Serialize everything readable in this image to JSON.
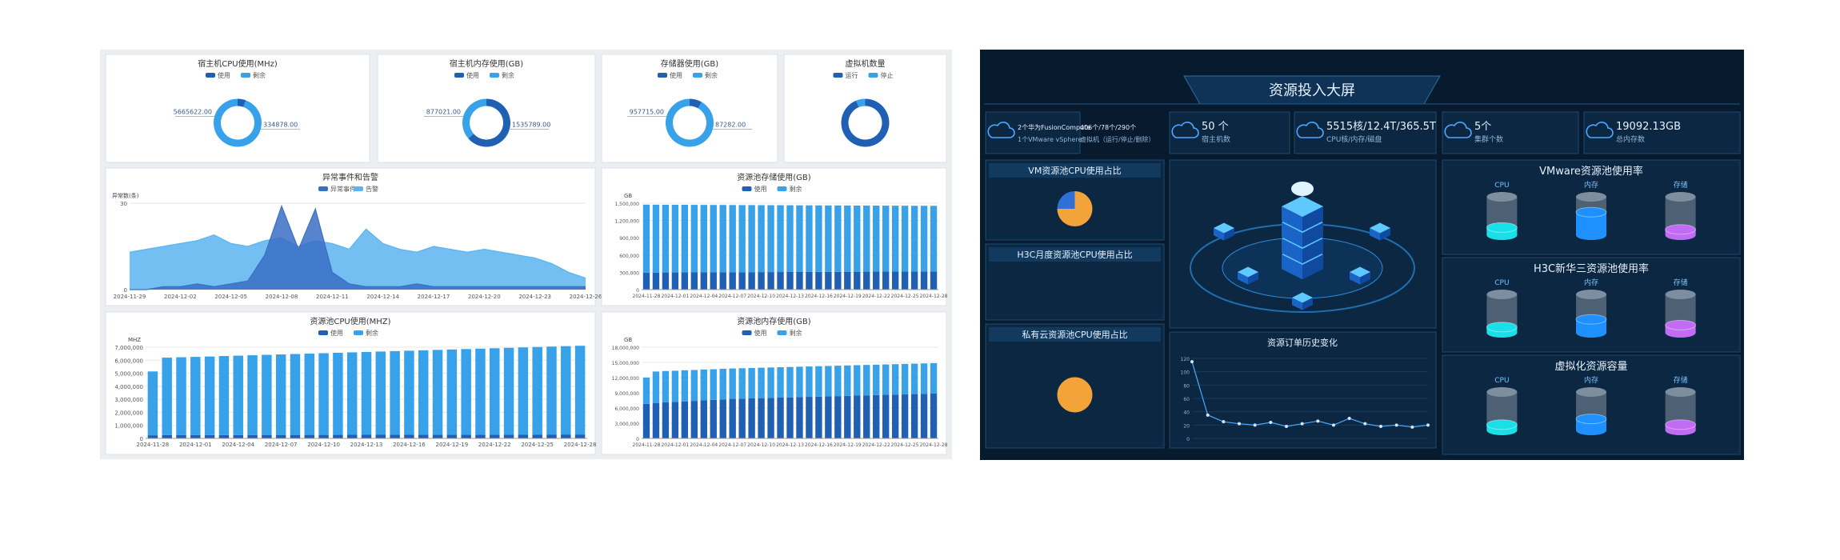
{
  "left": {
    "charts": [
      {
        "type": "donut",
        "title": "宿主机CPU使用(MHz)",
        "legend": [
          "使用",
          "剩余"
        ],
        "colors": [
          "#1f5fb4",
          "#37a2ea"
        ],
        "values": [
          334878,
          5665622
        ],
        "value_labels": [
          "334878.00",
          "5665622.00"
        ]
      },
      {
        "type": "donut",
        "title": "宿主机内存使用(GB)",
        "legend": [
          "使用",
          "剩余"
        ],
        "colors": [
          "#1f5fb4",
          "#37a2ea"
        ],
        "values": [
          1535789,
          877021
        ],
        "value_labels": [
          "1535789.00",
          "877021.00"
        ]
      },
      {
        "type": "donut",
        "title": "存储器使用(GB)",
        "legend": [
          "使用",
          "剩余"
        ],
        "colors": [
          "#1f5fb4",
          "#37a2ea"
        ],
        "values": [
          87282,
          957715
        ],
        "value_labels": [
          "87282.00",
          "957715.00"
        ]
      },
      {
        "type": "donut",
        "title": "虚拟机数量",
        "legend": [
          "运行",
          "停止"
        ],
        "colors": [
          "#1f5fb4",
          "#37a2ea"
        ],
        "values": [
          61,
          4
        ]
      },
      {
        "type": "area",
        "title": "异常事件和告警",
        "y_label": "异常数(条)",
        "ylim": [
          0,
          30
        ],
        "yticks": [
          0,
          30
        ],
        "categories": [
          "2024-11-29",
          null,
          null,
          "2024-12-02",
          null,
          null,
          "2024-12-05",
          null,
          null,
          "2024-12-08",
          null,
          null,
          "2024-12-11",
          null,
          null,
          "2024-12-14",
          null,
          null,
          "2024-12-17",
          null,
          null,
          "2024-12-20",
          null,
          null,
          "2024-12-23",
          null,
          null,
          "2024-12-26"
        ],
        "series": [
          {
            "name": "异常事件",
            "color": "#3a6fc4",
            "values": [
              0,
              0,
              1,
              1,
              2,
              1,
              2,
              3,
              12,
              29,
              14,
              28,
              6,
              2,
              1,
              1,
              1,
              2,
              1,
              1,
              1,
              1,
              1,
              1,
              1,
              1,
              1,
              1
            ]
          },
          {
            "name": "告警",
            "color": "#5ab4f0",
            "values": [
              13,
              14,
              15,
              16,
              17,
              19,
              16,
              15,
              17,
              18,
              15,
              17,
              16,
              14,
              21,
              16,
              14,
              13,
              15,
              14,
              13,
              14,
              13,
              12,
              11,
              9,
              6,
              4
            ]
          }
        ]
      },
      {
        "type": "bar",
        "title": "资源池存储使用(GB)",
        "y_label": "GB",
        "ylim": [
          0,
          1500000
        ],
        "yticks": [
          0,
          {
            "value": 300000,
            "label": "300,000"
          },
          {
            "value": 600000,
            "label": "600,000"
          },
          {
            "value": 900000,
            "label": "900,000"
          },
          {
            "value": 1200000,
            "label": "1,200,000"
          },
          {
            "value": 1500000,
            "label": "1,500,000"
          }
        ],
        "categories": [
          "2024-11-28",
          null,
          null,
          "2024-12-01",
          null,
          null,
          "2024-12-04",
          null,
          null,
          "2024-12-07",
          null,
          null,
          "2024-12-10",
          null,
          null,
          "2024-12-13",
          null,
          null,
          "2024-12-16",
          null,
          null,
          "2024-12-19",
          null,
          null,
          "2024-12-22",
          null,
          null,
          "2024-12-25",
          null,
          null,
          "2024-12-28"
        ],
        "series": [
          {
            "name": "使用",
            "color": "#1f5fb4",
            "values": [
              295000,
              296000,
              297000,
              297000,
              298000,
              299000,
              300000,
              300000,
              301000,
              302000,
              302000,
              303000,
              304000,
              304000,
              305000,
              306000,
              306000,
              307000,
              308000,
              308000,
              309000,
              310000,
              310000,
              311000,
              312000,
              312000,
              313000,
              314000,
              314000,
              315000,
              316000
            ]
          },
          {
            "name": "剩余",
            "color": "#37a2ea",
            "values": [
              1180000,
              1178000,
              1176000,
              1175000,
              1174000,
              1172000,
              1170000,
              1169000,
              1168000,
              1166000,
              1165000,
              1164000,
              1162000,
              1161000,
              1160000,
              1158000,
              1157000,
              1156000,
              1154000,
              1153000,
              1152000,
              1150000,
              1149000,
              1148000,
              1146000,
              1145000,
              1144000,
              1142000,
              1141000,
              1140000,
              1138000
            ]
          }
        ]
      },
      {
        "type": "bar",
        "title": "资源池CPU使用(MHZ)",
        "y_label": "MHZ",
        "ylim": [
          0,
          7000000
        ],
        "yticks": [
          0,
          {
            "value": 1000000,
            "label": "1,000,000"
          },
          {
            "value": 2000000,
            "label": "2,000,000"
          },
          {
            "value": 3000000,
            "label": "3,000,000"
          },
          {
            "value": 4000000,
            "label": "4,000,000"
          },
          {
            "value": 5000000,
            "label": "5,000,000"
          },
          {
            "value": 6000000,
            "label": "6,000,000"
          },
          {
            "value": 7000000,
            "label": "7,000,000"
          }
        ],
        "categories": [
          "2024-11-28",
          null,
          null,
          "2024-12-01",
          null,
          null,
          "2024-12-04",
          null,
          null,
          "2024-12-07",
          null,
          null,
          "2024-12-10",
          null,
          null,
          "2024-12-13",
          null,
          null,
          "2024-12-16",
          null,
          null,
          "2024-12-19",
          null,
          null,
          "2024-12-22",
          null,
          null,
          "2024-12-25",
          null,
          null,
          "2024-12-28"
        ],
        "series": [
          {
            "name": "使用",
            "color": "#1f5fb4",
            "values": [
              240000,
              250000,
              250000,
              255000,
              255000,
              260000,
              260000,
              262000,
              265000,
              265000,
              268000,
              270000,
              270000,
              272000,
              275000,
              275000,
              278000,
              280000,
              280000,
              282000,
              285000,
              285000,
              288000,
              290000,
              290000,
              292000,
              295000,
              295000,
              298000,
              300000,
              300000
            ]
          },
          {
            "name": "剩余",
            "color": "#37a2ea",
            "values": [
              4900000,
              5950000,
              5980000,
              6000000,
              6030000,
              6060000,
              6090000,
              6120000,
              6150000,
              6180000,
              6210000,
              6240000,
              6270000,
              6300000,
              6330000,
              6360000,
              6390000,
              6420000,
              6450000,
              6480000,
              6510000,
              6540000,
              6570000,
              6600000,
              6630000,
              6660000,
              6690000,
              6720000,
              6750000,
              6780000,
              6810000
            ]
          }
        ]
      },
      {
        "type": "bar",
        "title": "资源池内存使用(GB)",
        "y_label": "GB",
        "ylim": [
          0,
          18000000
        ],
        "yticks": [
          0,
          {
            "value": 3000000,
            "label": "3,000,000"
          },
          {
            "value": 6000000,
            "label": "6,000,000"
          },
          {
            "value": 9000000,
            "label": "9,000,000"
          },
          {
            "value": 12000000,
            "label": "12,000,000"
          },
          {
            "value": 15000000,
            "label": "15,000,000"
          },
          {
            "value": 18000000,
            "label": "18,000,000"
          }
        ],
        "categories": [
          "2024-11-28",
          null,
          null,
          "2024-12-01",
          null,
          null,
          "2024-12-04",
          null,
          null,
          "2024-12-07",
          null,
          null,
          "2024-12-10",
          null,
          null,
          "2024-12-13",
          null,
          null,
          "2024-12-16",
          null,
          null,
          "2024-12-19",
          null,
          null,
          "2024-12-22",
          null,
          null,
          "2024-12-25",
          null,
          null,
          "2024-12-28"
        ],
        "series": [
          {
            "name": "使用",
            "color": "#1f5fb4",
            "values": [
              6800000,
              7000000,
              7100000,
              7200000,
              7300000,
              7400000,
              7500000,
              7600000,
              7700000,
              7800000,
              7850000,
              7900000,
              7950000,
              8000000,
              8050000,
              8100000,
              8150000,
              8200000,
              8250000,
              8300000,
              8350000,
              8400000,
              8450000,
              8500000,
              8550000,
              8600000,
              8650000,
              8700000,
              8750000,
              8800000,
              8850000
            ]
          },
          {
            "name": "剩余",
            "color": "#37a2ea",
            "values": [
              5200000,
              6200000,
              6200000,
              6150000,
              6150000,
              6100000,
              6100000,
              6050000,
              6050000,
              6000000,
              6000000,
              6000000,
              6000000,
              6000000,
              6000000,
              6000000,
              6000000,
              6000000,
              6000000,
              6000000,
              6000000,
              6000000,
              6000000,
              6000000,
              6000000,
              6000000,
              6000000,
              6000000,
              6000000,
              6000000,
              6000000
            ]
          }
        ]
      }
    ]
  },
  "right": {
    "title": "资源投入大屏",
    "stats": [
      {
        "lines": [
          "2个华为FusionCompute",
          "1个VMware vSphere"
        ]
      },
      {
        "lines": [
          "406个/78个/290个",
          "虚拟机（运行/停止/删除）"
        ]
      },
      {
        "lines": [
          "50 个",
          "宿主机数"
        ]
      },
      {
        "lines": [
          "5515核/12.4T/365.5T",
          "CPU核/内存/磁盘"
        ]
      },
      {
        "lines": [
          "5个",
          "集群个数"
        ]
      },
      {
        "lines": [
          "19092.13GB",
          "总内存数"
        ]
      }
    ],
    "pies": [
      {
        "title": "VM资源池CPU使用占比",
        "values": [
          75,
          25
        ],
        "colors": [
          "#f2a33a",
          "#2f6fd6"
        ]
      },
      {
        "title": "H3C月度资源池CPU使用占比"
      },
      {
        "title": "私有云资源池CPU使用占比",
        "values": [
          100
        ],
        "colors": [
          "#f2a33a"
        ]
      }
    ],
    "orders": {
      "type": "line",
      "title": "资源订单历史变化",
      "color": "#4aa8ff",
      "ylim": [
        0,
        120
      ],
      "yticks": [
        0,
        20,
        40,
        60,
        80,
        100,
        120
      ],
      "values": [
        115,
        35,
        25,
        22,
        20,
        24,
        18,
        22,
        26,
        20,
        30,
        22,
        18,
        20,
        17,
        20
      ]
    },
    "usage": [
      {
        "title": "VMware资源池使用率",
        "labels": [
          "CPU",
          "内存",
          "存储"
        ],
        "colors": [
          "#19e0e8",
          "#1e90ff",
          "#c26cf5"
        ],
        "values": [
          20,
          60,
          15
        ]
      },
      {
        "title": "H3C新华三资源池使用率",
        "labels": [
          "CPU",
          "内存",
          "存储"
        ],
        "colors": [
          "#19e0e8",
          "#1e90ff",
          "#c26cf5"
        ],
        "values": [
          15,
          35,
          20
        ]
      },
      {
        "title": "虚拟化资源容量",
        "labels": [
          "CPU",
          "内存",
          "存储"
        ],
        "colors": [
          "#19e0e8",
          "#1e90ff",
          "#c26cf5"
        ],
        "values": [
          15,
          30,
          15
        ]
      }
    ]
  }
}
